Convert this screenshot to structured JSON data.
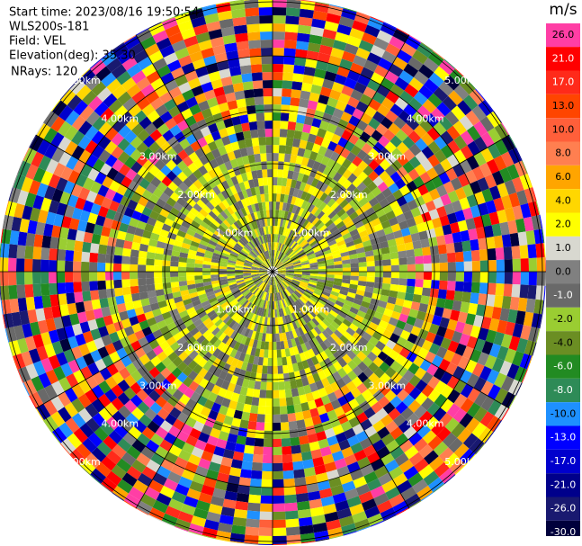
{
  "chart_data": {
    "type": "ppi",
    "header": [
      "Start time: 2023/08/16 19:50:54",
      "WLS200s-181",
      "Field: VEL",
      "Elevation(deg): 35.30",
      "NRays: 120"
    ],
    "range_rings": [
      "1.00km",
      "2.00km",
      "3.00km",
      "4.00km",
      "5.00km"
    ],
    "colorbar": {
      "label": "m/s",
      "ticks": [
        {
          "value": 26,
          "label": "26.0"
        },
        {
          "value": 21,
          "label": "21.0"
        },
        {
          "value": 17,
          "label": "17.0"
        },
        {
          "value": 13,
          "label": "13.0"
        },
        {
          "value": 10,
          "label": "10.0"
        },
        {
          "value": 8,
          "label": "8.0"
        },
        {
          "value": 6,
          "label": "6.0"
        },
        {
          "value": 4,
          "label": "4.0"
        },
        {
          "value": 2,
          "label": "2.0"
        },
        {
          "value": 1,
          "label": "1.0"
        },
        {
          "value": 0,
          "label": "0.0"
        },
        {
          "value": -1,
          "label": "-1.0"
        },
        {
          "value": -2,
          "label": "-2.0"
        },
        {
          "value": -4,
          "label": "-4.0"
        },
        {
          "value": -6,
          "label": "-6.0"
        },
        {
          "value": -8,
          "label": "-8.0"
        },
        {
          "value": -10,
          "label": "-10.0"
        },
        {
          "value": -13,
          "label": "-13.0"
        },
        {
          "value": -17,
          "label": "-17.0"
        },
        {
          "value": -21,
          "label": "-21.0"
        },
        {
          "value": -26,
          "label": "-26.0"
        },
        {
          "value": -30,
          "label": "-30.0"
        }
      ],
      "colors": [
        "#ff3ea5",
        "#ff0000",
        "#ff2a1a",
        "#ff4500",
        "#ff5f3a",
        "#ff7f50",
        "#ffa500",
        "#ffd700",
        "#ffff00",
        "#d8d8d0",
        "#808080",
        "#696969",
        "#9acd32",
        "#6b8e23",
        "#228b22",
        "#2e8b57",
        "#1e90ff",
        "#0000ff",
        "#0000cd",
        "#00008b",
        "#191970",
        "#00003c"
      ]
    }
  }
}
